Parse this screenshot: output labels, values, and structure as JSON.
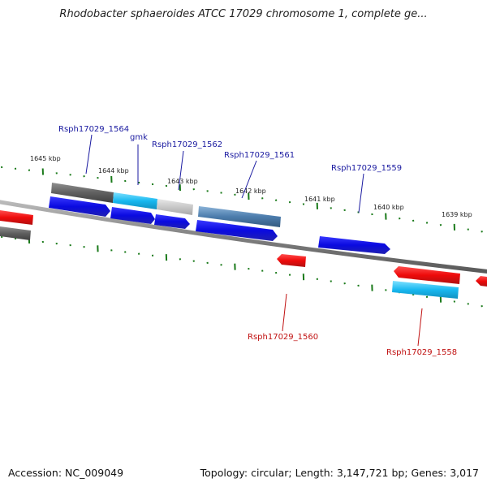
{
  "title": "Rhodobacter sphaeroides ATCC 17029 chromosome 1, complete ge...",
  "footer": {
    "accession": "Accession: NC_009049",
    "topology": "Topology: circular; Length: 3,147,721 bp; Genes: 3,017"
  },
  "colors": {
    "forward_gene": "#1010e0",
    "reverse_gene": "#e81010",
    "tick": "#1a7a1a",
    "backbone": "#8a8a8a",
    "forward_label": "#1a1aa0",
    "reverse_label": "#c01010"
  },
  "scale_labels": [
    "1645 kbp",
    "1644 kbp",
    "1643 kbp",
    "1642 kbp",
    "1641 kbp",
    "1640 kbp",
    "1639 kbp"
  ],
  "gene_labels": [
    {
      "text": "Rsph17029_1564",
      "strand": "forward"
    },
    {
      "text": "gmk",
      "strand": "forward"
    },
    {
      "text": "Rsph17029_1562",
      "strand": "forward"
    },
    {
      "text": "Rsph17029_1561",
      "strand": "forward"
    },
    {
      "text": "Rsph17029_1559",
      "strand": "forward"
    },
    {
      "text": "Rsph17029_1560",
      "strand": "reverse"
    },
    {
      "text": "Rsph17029_1558",
      "strand": "reverse"
    }
  ]
}
